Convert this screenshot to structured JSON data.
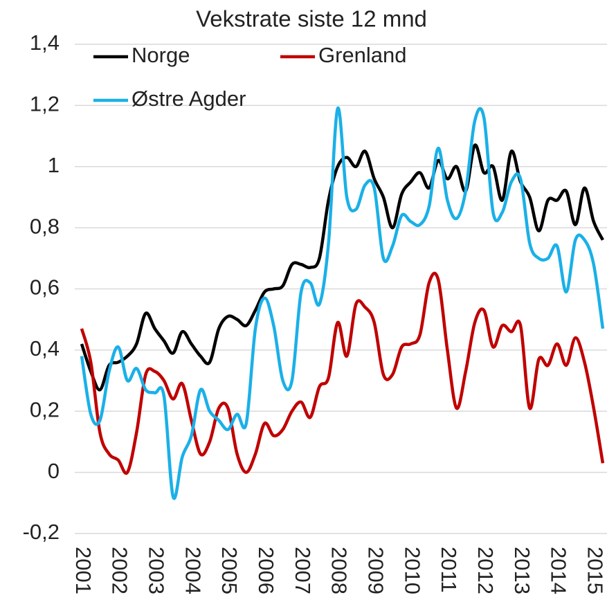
{
  "chart_data": {
    "type": "line",
    "title": "Vekstrate siste 12 mnd",
    "x": [
      2001,
      2001.25,
      2001.5,
      2001.75,
      2002,
      2002.25,
      2002.5,
      2002.75,
      2003,
      2003.25,
      2003.5,
      2003.75,
      2004,
      2004.25,
      2004.5,
      2004.75,
      2005,
      2005.25,
      2005.5,
      2005.75,
      2006,
      2006.25,
      2006.5,
      2006.75,
      2007,
      2007.25,
      2007.5,
      2007.75,
      2008,
      2008.25,
      2008.5,
      2008.75,
      2009,
      2009.25,
      2009.5,
      2009.75,
      2010,
      2010.25,
      2010.5,
      2010.75,
      2011,
      2011.25,
      2011.5,
      2011.75,
      2012,
      2012.25,
      2012.5,
      2012.75,
      2013,
      2013.25,
      2013.5,
      2013.75,
      2014,
      2014.25,
      2014.5,
      2014.75,
      2015,
      2015.25
    ],
    "series": [
      {
        "name": "Norge",
        "color": "#000000",
        "values": [
          0.42,
          0.33,
          0.27,
          0.35,
          0.36,
          0.38,
          0.42,
          0.52,
          0.47,
          0.43,
          0.39,
          0.46,
          0.42,
          0.38,
          0.36,
          0.47,
          0.51,
          0.5,
          0.48,
          0.53,
          0.59,
          0.6,
          0.61,
          0.68,
          0.68,
          0.67,
          0.7,
          0.89,
          1.0,
          1.03,
          1.0,
          1.05,
          0.96,
          0.9,
          0.8,
          0.91,
          0.95,
          0.98,
          0.93,
          1.02,
          0.96,
          1.0,
          0.92,
          1.07,
          0.98,
          1.0,
          0.89,
          1.05,
          0.95,
          0.9,
          0.79,
          0.89,
          0.89,
          0.92,
          0.81,
          0.93,
          0.82,
          0.76
        ]
      },
      {
        "name": "Grenland",
        "color": "#c00000",
        "values": [
          0.47,
          0.36,
          0.13,
          0.06,
          0.04,
          0.0,
          0.13,
          0.32,
          0.33,
          0.3,
          0.24,
          0.29,
          0.17,
          0.06,
          0.1,
          0.21,
          0.21,
          0.06,
          0.0,
          0.06,
          0.16,
          0.12,
          0.14,
          0.2,
          0.23,
          0.18,
          0.28,
          0.31,
          0.49,
          0.38,
          0.55,
          0.54,
          0.49,
          0.32,
          0.32,
          0.41,
          0.42,
          0.45,
          0.62,
          0.63,
          0.4,
          0.21,
          0.33,
          0.49,
          0.53,
          0.41,
          0.48,
          0.46,
          0.48,
          0.21,
          0.37,
          0.35,
          0.42,
          0.35,
          0.44,
          0.36,
          0.21,
          0.03
        ]
      },
      {
        "name": "Østre Agder",
        "color": "#1ab0e8",
        "values": [
          0.38,
          0.19,
          0.17,
          0.33,
          0.41,
          0.3,
          0.34,
          0.27,
          0.26,
          0.25,
          -0.08,
          0.05,
          0.12,
          0.27,
          0.2,
          0.17,
          0.14,
          0.19,
          0.16,
          0.47,
          0.57,
          0.48,
          0.3,
          0.3,
          0.59,
          0.62,
          0.55,
          0.75,
          1.19,
          0.9,
          0.86,
          0.94,
          0.93,
          0.7,
          0.74,
          0.84,
          0.82,
          0.81,
          0.87,
          1.06,
          0.89,
          0.83,
          0.92,
          1.15,
          1.16,
          0.85,
          0.85,
          0.95,
          0.96,
          0.75,
          0.7,
          0.7,
          0.74,
          0.59,
          0.76,
          0.76,
          0.68,
          0.47
        ]
      }
    ],
    "xlim": [
      2001,
      2015.27
    ],
    "xticks": [
      2001,
      2002,
      2003,
      2004,
      2005,
      2006,
      2007,
      2008,
      2009,
      2010,
      2011,
      2012,
      2013,
      2014,
      2015
    ],
    "ylim": [
      -0.2,
      1.4
    ],
    "yticks": [
      {
        "value": -0.2,
        "label": "-0,2"
      },
      0,
      {
        "value": 0.2,
        "label": "0,2"
      },
      {
        "value": 0.4,
        "label": "0,4"
      },
      {
        "value": 0.6,
        "label": "0,6"
      },
      {
        "value": 0.8,
        "label": "0,8"
      },
      1,
      {
        "value": 1.2,
        "label": "1,2"
      },
      {
        "value": 1.4,
        "label": "1,4"
      }
    ],
    "grid": true,
    "legend": "top-left"
  }
}
